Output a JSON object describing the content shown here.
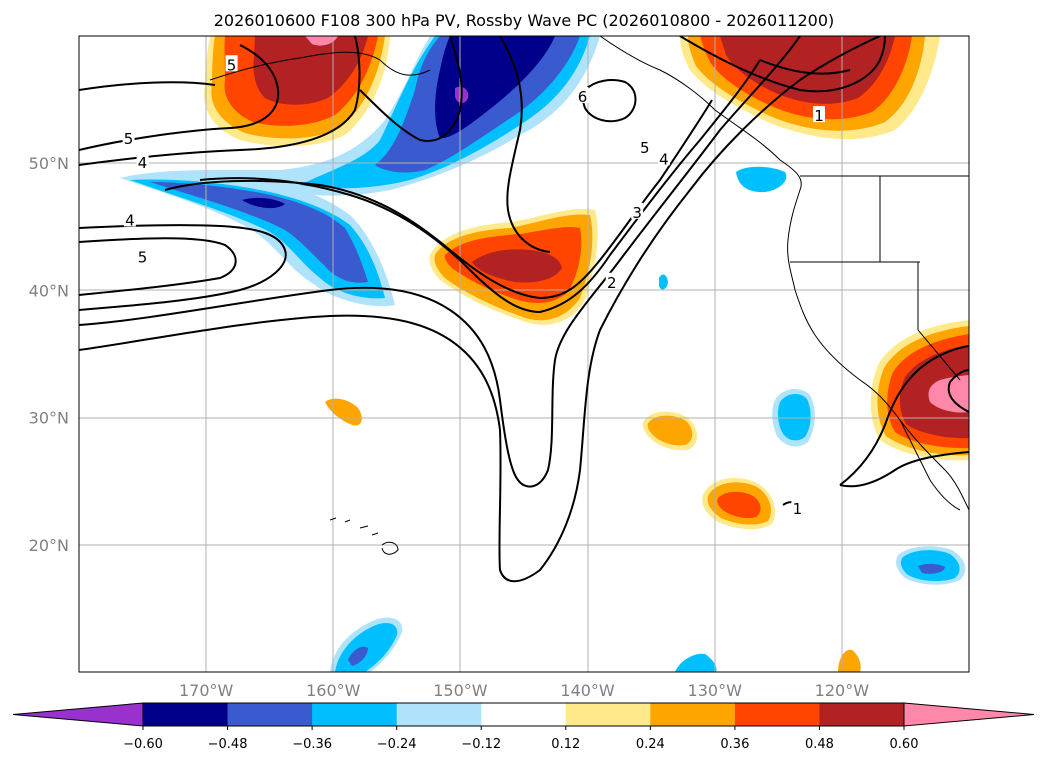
{
  "title": "2026010600 F108 300 hPa PV, Rossby Wave PC (2026010800 - 2026011200)",
  "map": {
    "projection": "PlateCarree",
    "extent": {
      "lon_min": -180,
      "lon_max": -110,
      "lat_min": 10,
      "lat_max": 60
    },
    "lon_ticks": [
      {
        "value": -170,
        "label": "170°W"
      },
      {
        "value": -160,
        "label": "160°W"
      },
      {
        "value": -150,
        "label": "150°W"
      },
      {
        "value": -140,
        "label": "140°W"
      },
      {
        "value": -130,
        "label": "130°W"
      },
      {
        "value": -120,
        "label": "120°W"
      }
    ],
    "lat_ticks": [
      {
        "value": 50,
        "label": "50°N"
      },
      {
        "value": 40,
        "label": "40°N"
      },
      {
        "value": 30,
        "label": "30°N"
      },
      {
        "value": 20,
        "label": "20°N"
      }
    ],
    "gridlines": true
  },
  "pv_contour_labels": [
    {
      "text": "5",
      "lon": -168.0,
      "lat": 57.7
    },
    {
      "text": "5",
      "lon": -176.1,
      "lat": 51.9
    },
    {
      "text": "4",
      "lon": -175.0,
      "lat": 50.0
    },
    {
      "text": "4",
      "lon": -176.0,
      "lat": 45.5
    },
    {
      "text": "5",
      "lon": -175.0,
      "lat": 42.6
    },
    {
      "text": "6",
      "lon": -140.4,
      "lat": 55.2
    },
    {
      "text": "5",
      "lon": -135.5,
      "lat": 51.2
    },
    {
      "text": "4",
      "lon": -134.0,
      "lat": 50.3
    },
    {
      "text": "3",
      "lon": -136.1,
      "lat": 46.1
    },
    {
      "text": "2",
      "lon": -138.1,
      "lat": 40.6
    },
    {
      "text": "1",
      "lon": -121.8,
      "lat": 53.7
    },
    {
      "text": "1",
      "lon": -123.5,
      "lat": 22.8
    }
  ],
  "colorbar": {
    "boundaries": [
      -0.72,
      -0.6,
      -0.48,
      -0.36,
      -0.24,
      -0.12,
      0.12,
      0.24,
      0.36,
      0.48,
      0.6,
      0.72
    ],
    "tick_labels": [
      "−0.60",
      "−0.48",
      "−0.36",
      "−0.24",
      "−0.12",
      "0.12",
      "0.24",
      "0.36",
      "0.48",
      "0.60"
    ],
    "under_color": "#9932cc",
    "over_color": "#ff88aa",
    "colors": [
      "#9932cc",
      "#00008b",
      "#3a5bd0",
      "#00bfff",
      "#aee3fb",
      "#ffffff",
      "#ffe98a",
      "#ffa500",
      "#ff4500",
      "#b22222",
      "#ff88aa"
    ],
    "extend": "both"
  },
  "pc_anomaly_regions": [
    {
      "name": "gulf-of-alaska-negative",
      "level": -0.36,
      "lon": -148.5,
      "lat": 55.0,
      "extent": "large"
    },
    {
      "name": "aleutian-negative-tongue",
      "level": -0.36,
      "lon": -163.0,
      "lat": 45.5
    },
    {
      "name": "central-pacific-positive",
      "level": 0.48,
      "lon": -147.0,
      "lat": 42.0
    },
    {
      "name": "bering-positive",
      "level": 0.48,
      "lon": -164.0,
      "lat": 56.5
    },
    {
      "name": "northwest-canada-positive",
      "level": 0.48,
      "lon": -124.0,
      "lat": 56.5
    },
    {
      "name": "southern-california-positive",
      "level": 0.6,
      "lon": -113.0,
      "lat": 32.0
    },
    {
      "name": "subtropical-positive-22n",
      "level": 0.36,
      "lon": -129.5,
      "lat": 23.0
    },
    {
      "name": "subtropical-positive-29n",
      "level": 0.24,
      "lon": -132.5,
      "lat": 29.0
    },
    {
      "name": "subtropical-negative-30n",
      "level": -0.24,
      "lon": -122.5,
      "lat": 30.0
    },
    {
      "name": "subtropical-negative-17n",
      "level": -0.48,
      "lon": -113.0,
      "lat": 16.0
    },
    {
      "name": "southern-negative-12n",
      "level": -0.36,
      "lon": -157.5,
      "lat": 12.0
    }
  ]
}
